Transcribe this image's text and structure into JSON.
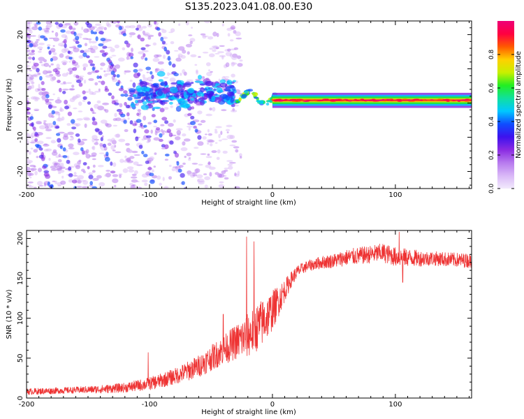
{
  "figure_title": "S135.2023.041.08.00.E30",
  "colors": {
    "snr_line": "#ee3333",
    "background": "#ffffff",
    "axis": "#000000",
    "colormap": [
      "#f2eafc",
      "#d9b8f7",
      "#b77aee",
      "#8a2be2",
      "#3d12ee",
      "#0f4dff",
      "#00c8ff",
      "#10e0a0",
      "#22ee22",
      "#c8f000",
      "#ffd000",
      "#ff5a00",
      "#ff0040",
      "#ee0077"
    ]
  },
  "chart_data": [
    {
      "type": "heatmap",
      "title": "",
      "xlabel": "Height of straight line (km)",
      "ylabel": "Frequency (Hz)",
      "xlim": [
        -200,
        162
      ],
      "ylim": [
        -25,
        24
      ],
      "x_ticks": [
        -200,
        -100,
        0,
        100
      ],
      "x_tick_labels": [
        "-200",
        "-100",
        "0",
        "100"
      ],
      "y_ticks": [
        -20,
        -10,
        0,
        10,
        20
      ],
      "y_tick_labels": [
        "-20",
        "-10",
        "0",
        "10",
        "20"
      ],
      "colorbar": {
        "label": "Normalized spectral amplitude",
        "range": [
          0,
          1
        ],
        "ticks": [
          0.0,
          0.2,
          0.4,
          0.6,
          0.8
        ],
        "tick_labels": [
          "0.0",
          "0.2",
          "0.4",
          "0.6",
          "0.8"
        ]
      },
      "description_of_content": "scattered low-amplitude diagonal streaks for heights below about -40 km; a dense cluster of blobs near 3 Hz between -110 and -30 km; a strong continuous band near 1 Hz from about -20 km to 162 km",
      "features": [
        {
          "name": "cluster",
          "x_range": [
            -115,
            -30
          ],
          "freq_center": 3,
          "freq_spread": 4,
          "amplitude": 0.35
        },
        {
          "name": "band",
          "x_range": [
            0,
            162
          ],
          "freq_center": 0.8,
          "freq_half_width": 1.2,
          "amplitude": 0.9
        }
      ]
    },
    {
      "type": "line",
      "title": "",
      "xlabel": "Height of straight line (km)",
      "ylabel": "SNR (10 * v/v)",
      "xlim": [
        -200,
        162
      ],
      "ylim": [
        0,
        210
      ],
      "x_ticks": [
        -200,
        -100,
        0,
        100
      ],
      "x_tick_labels": [
        "-200",
        "-100",
        "0",
        "100"
      ],
      "y_ticks": [
        0,
        50,
        100,
        150,
        200
      ],
      "y_tick_labels": [
        "0",
        "50",
        "100",
        "150",
        "200"
      ],
      "series": [
        {
          "name": "SNR",
          "x": [
            -200,
            -180,
            -160,
            -140,
            -120,
            -100,
            -90,
            -80,
            -70,
            -60,
            -50,
            -40,
            -30,
            -20,
            -15,
            -10,
            -5,
            0,
            5,
            10,
            15,
            20,
            25,
            30,
            40,
            50,
            60,
            70,
            80,
            90,
            100,
            110,
            120,
            130,
            140,
            150,
            162
          ],
          "values": [
            8,
            9,
            10,
            11,
            13,
            18,
            22,
            27,
            33,
            40,
            50,
            60,
            70,
            78,
            85,
            92,
            100,
            110,
            122,
            135,
            148,
            158,
            163,
            166,
            170,
            172,
            176,
            178,
            180,
            182,
            177,
            176,
            175,
            175,
            174,
            173,
            172
          ],
          "noise_amplitude": [
            4,
            4,
            4,
            5,
            6,
            8,
            9,
            10,
            12,
            14,
            16,
            18,
            22,
            28,
            30,
            30,
            28,
            25,
            20,
            14,
            10,
            8,
            7,
            7,
            8,
            9,
            10,
            11,
            11,
            12,
            12,
            11,
            10,
            9,
            9,
            9,
            9
          ],
          "spikes": [
            {
              "x": -21,
              "y": 202
            },
            {
              "x": -15,
              "y": 196
            },
            {
              "x": -101,
              "y": 57
            },
            {
              "x": -40,
              "y": 105
            },
            {
              "x": 103,
              "y": 208
            },
            {
              "x": 106,
              "y": 145
            }
          ]
        }
      ]
    }
  ]
}
